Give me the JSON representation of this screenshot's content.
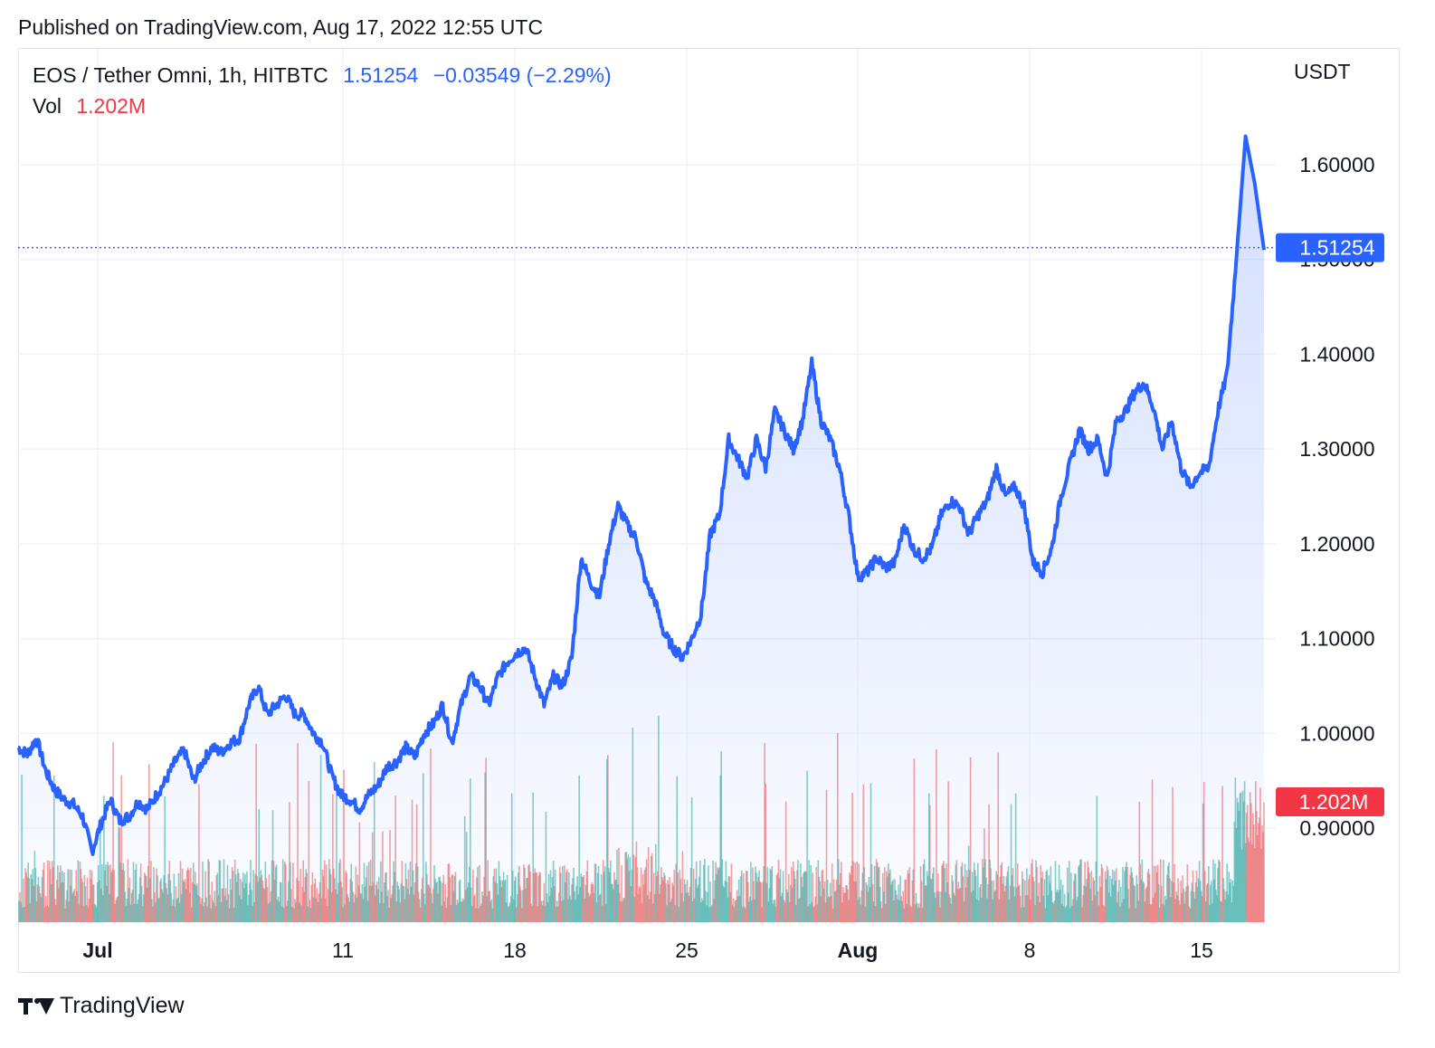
{
  "header": {
    "published": "Published on TradingView.com, Aug 17, 2022 12:55 UTC"
  },
  "legend": {
    "symbol": "EOS / Tether Omni, 1h, HITBTC",
    "last": "1.51254",
    "change": "−0.03549 (−2.29%)",
    "vol_label": "Vol",
    "vol_value": "1.202M"
  },
  "currency": "USDT",
  "footer": {
    "brand": "TradingView"
  },
  "colors": {
    "line": "#2962ff",
    "area_top": "#2962ff",
    "volume_up": "#26a69a",
    "volume_down": "#ef5350",
    "grid": "#f0f3fa",
    "last_price_label": "#2962ff",
    "volume_label": "#f23645"
  },
  "chart_data": {
    "type": "area",
    "x_tick_labels": [
      "Jul",
      "11",
      "18",
      "25",
      "Aug",
      "8",
      "15"
    ],
    "x_tick_labels_bold": [
      "Jul",
      "Aug"
    ],
    "y_tick_labels": [
      "1.60000",
      "1.50000",
      "1.40000",
      "1.30000",
      "1.20000",
      "1.10000",
      "1.00000",
      "0.90000"
    ],
    "ylim": [
      0.85,
      1.65
    ],
    "grid": true,
    "last_price_label": "1.51254",
    "last_price": 1.51254,
    "volume_label": "1.202M",
    "volume_max_shown": 1.202,
    "series": [
      {
        "values": [
          0.985,
          0.978,
          0.995,
          0.96,
          0.94,
          0.93,
          0.925,
          0.912,
          0.875,
          0.905,
          0.93,
          0.908,
          0.912,
          0.928,
          0.92,
          0.935,
          0.95,
          0.97,
          0.982,
          0.95,
          0.97,
          0.985,
          0.98,
          0.99,
          0.995,
          1.03,
          1.05,
          1.02,
          1.03,
          1.04,
          1.02,
          1.02,
          1.0,
          0.99,
          0.955,
          0.935,
          0.93,
          0.92,
          0.935,
          0.945,
          0.965,
          0.97,
          0.985,
          0.975,
          1.0,
          1.01,
          1.03,
          0.99,
          1.03,
          1.06,
          1.05,
          1.03,
          1.06,
          1.075,
          1.085,
          1.09,
          1.06,
          1.03,
          1.06,
          1.05,
          1.08,
          1.185,
          1.16,
          1.145,
          1.2,
          1.24,
          1.22,
          1.205,
          1.16,
          1.14,
          1.105,
          1.09,
          1.08,
          1.1,
          1.125,
          1.21,
          1.23,
          1.31,
          1.29,
          1.27,
          1.31,
          1.28,
          1.34,
          1.32,
          1.3,
          1.33,
          1.39,
          1.33,
          1.31,
          1.28,
          1.23,
          1.165,
          1.17,
          1.185,
          1.175,
          1.18,
          1.22,
          1.195,
          1.185,
          1.195,
          1.23,
          1.245,
          1.24,
          1.21,
          1.23,
          1.245,
          1.28,
          1.25,
          1.26,
          1.24,
          1.18,
          1.17,
          1.195,
          1.25,
          1.285,
          1.32,
          1.3,
          1.31,
          1.27,
          1.33,
          1.34,
          1.36,
          1.37,
          1.345,
          1.3,
          1.33,
          1.28,
          1.26,
          1.275,
          1.28,
          1.34,
          1.38,
          1.5,
          1.63,
          1.58,
          1.51
        ]
      }
    ]
  }
}
